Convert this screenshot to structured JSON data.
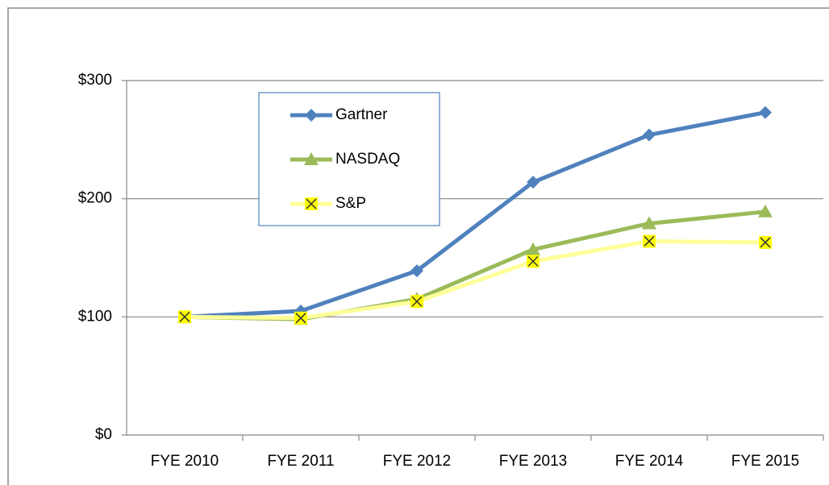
{
  "chart_data": {
    "type": "line",
    "categories": [
      "FYE 2010",
      "FYE 2011",
      "FYE 2012",
      "FYE 2013",
      "FYE 2014",
      "FYE 2015"
    ],
    "series": [
      {
        "name": "Gartner",
        "color": "#4f81bd",
        "marker": "diamond",
        "values": [
          100,
          105,
          139,
          214,
          254,
          273
        ]
      },
      {
        "name": "NASDAQ",
        "color": "#9bbb59",
        "marker": "triangle",
        "values": [
          100,
          98,
          115,
          157,
          179,
          189
        ]
      },
      {
        "name": "S&P",
        "color": "#ffff99",
        "marker": "x",
        "values": [
          100,
          99,
          113,
          147,
          164,
          163
        ]
      }
    ],
    "ylim": [
      0,
      300
    ],
    "yticks": [
      {
        "value": 0,
        "label": "$0"
      },
      {
        "value": 100,
        "label": "$100"
      },
      {
        "value": 200,
        "label": "$200"
      },
      {
        "value": 300,
        "label": "$300"
      }
    ],
    "grid": true
  }
}
